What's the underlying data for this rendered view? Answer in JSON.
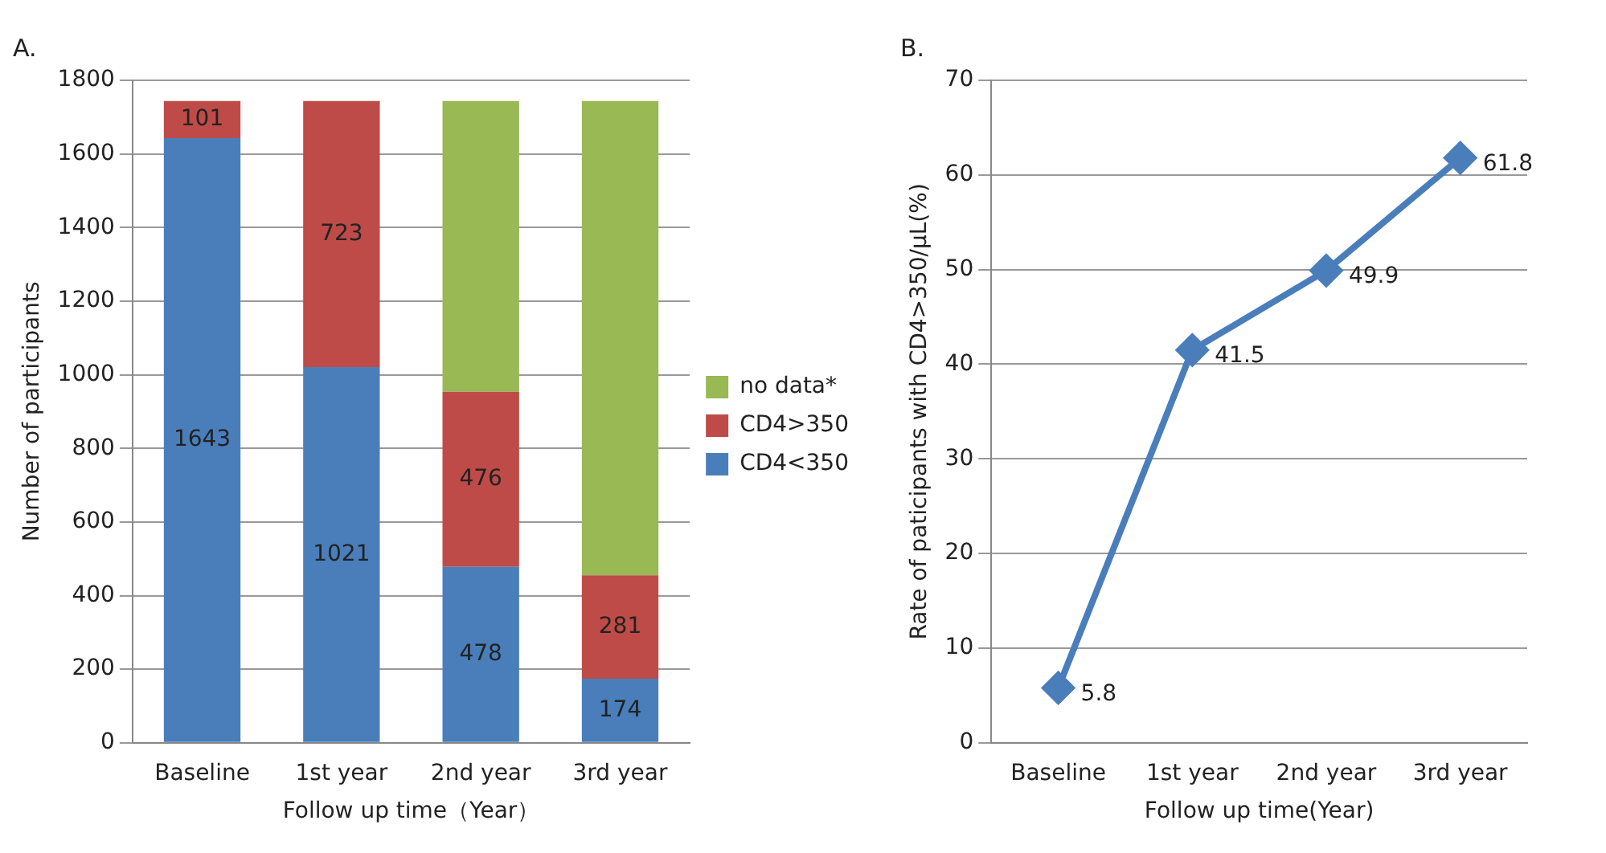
{
  "chart_data": [
    {
      "type": "bar",
      "title": "A.",
      "xlabel": "Follow up time（Year）",
      "ylabel": "Number of participants",
      "categories": [
        "Baseline",
        "1st year",
        "2nd year",
        "3rd year"
      ],
      "stacked": true,
      "ylim": [
        0,
        1800
      ],
      "yticks": [
        0,
        200,
        400,
        600,
        800,
        1000,
        1200,
        1400,
        1600,
        1800
      ],
      "grid": "y",
      "legend": "right",
      "series": [
        {
          "name": "CD4<350",
          "color": "#4a7ebb",
          "values": [
            1643,
            1021,
            478,
            174
          ],
          "value_labels": [
            "1643",
            "1021",
            "478",
            "174"
          ]
        },
        {
          "name": "CD4>350",
          "color": "#be4b48",
          "values": [
            101,
            723,
            476,
            281
          ],
          "value_labels": [
            "101",
            "723",
            "476",
            "281"
          ]
        },
        {
          "name": "no data*",
          "color": "#98b954",
          "values": [
            0,
            0,
            790,
            1289
          ],
          "value_labels": [
            null,
            null,
            null,
            null
          ]
        }
      ]
    },
    {
      "type": "line",
      "title": "B.",
      "xlabel": "Follow up time(Year)",
      "ylabel": "Rate of paticipants with CD4>350/μL(%)",
      "categories": [
        "Baseline",
        "1st year",
        "2nd year",
        "3rd year"
      ],
      "ylim": [
        0,
        70
      ],
      "yticks": [
        0,
        10,
        20,
        30,
        40,
        50,
        60,
        70
      ],
      "grid": "y",
      "marker": "diamond",
      "data_labels": true,
      "series": [
        {
          "color": "#4a7ebb",
          "values": [
            5.8,
            41.5,
            49.9,
            61.8
          ]
        }
      ]
    }
  ]
}
